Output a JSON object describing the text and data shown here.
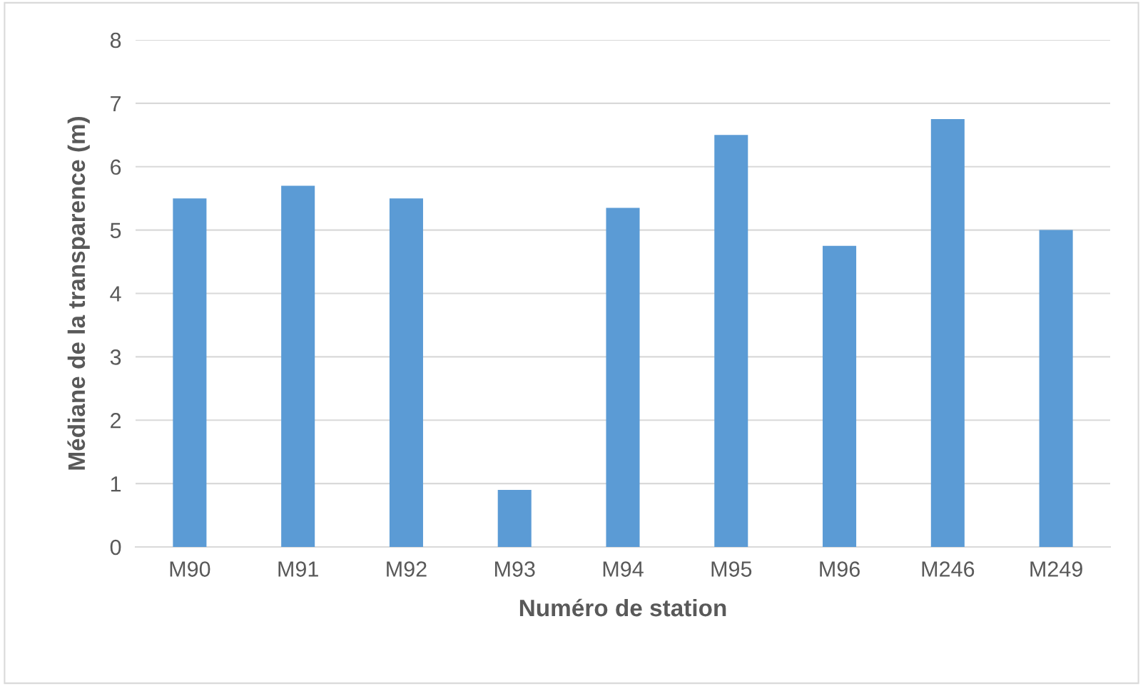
{
  "chart_data": {
    "type": "bar",
    "xlabel": "Numéro de station",
    "ylabel": "Médiane de la transparence (m)",
    "categories": [
      "M90",
      "M91",
      "M92",
      "M93",
      "M94",
      "M95",
      "M96",
      "M246",
      "M249"
    ],
    "values": [
      5.5,
      5.7,
      5.5,
      0.9,
      5.35,
      6.5,
      4.75,
      6.75,
      5.0
    ],
    "color": "#5b9bd5",
    "ylim": [
      0,
      8
    ],
    "yticks": [
      0,
      1,
      2,
      3,
      4,
      5,
      6,
      7,
      8
    ],
    "grid": "y",
    "legend": false
  }
}
